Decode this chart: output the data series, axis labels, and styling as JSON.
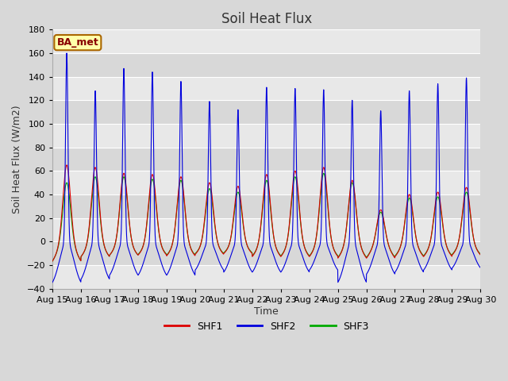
{
  "title": "Soil Heat Flux",
  "ylabel": "Soil Heat Flux (W/m2)",
  "xlabel": "Time",
  "ylim": [
    -40,
    180
  ],
  "yticks": [
    -40,
    -20,
    0,
    20,
    40,
    60,
    80,
    100,
    120,
    140,
    160,
    180
  ],
  "fig_bg_color": "#d8d8d8",
  "plot_bg_color": "#e8e8e8",
  "shf1_color": "#dd0000",
  "shf2_color": "#0000dd",
  "shf3_color": "#00aa00",
  "legend_label1": "SHF1",
  "legend_label2": "SHF2",
  "legend_label3": "SHF3",
  "site_label": "BA_met",
  "start_day": 15,
  "n_days": 15,
  "shf2_peaks": [
    160,
    128,
    147,
    144,
    136,
    119,
    112,
    131,
    130,
    129,
    120,
    111,
    128,
    134,
    139
  ],
  "shf1_peaks": [
    65,
    63,
    58,
    57,
    55,
    50,
    47,
    57,
    60,
    63,
    52,
    27,
    40,
    42,
    46
  ],
  "shf3_peaks": [
    50,
    55,
    55,
    53,
    52,
    45,
    42,
    52,
    55,
    58,
    50,
    25,
    37,
    38,
    42
  ],
  "shf2_troughs": [
    -40,
    -37,
    -33,
    -33,
    -33,
    -28,
    -30,
    -30,
    -30,
    -28,
    -40,
    -32,
    -30,
    -28,
    -26
  ],
  "shf1_troughs": [
    -26,
    -20,
    -18,
    -18,
    -19,
    -17,
    -16,
    -20,
    -20,
    -20,
    -22,
    -22,
    -20,
    -20,
    -18
  ],
  "shf3_troughs": [
    -26,
    -20,
    -18,
    -17,
    -18,
    -16,
    -15,
    -19,
    -19,
    -19,
    -21,
    -21,
    -19,
    -19,
    -17
  ],
  "points_per_day": 144,
  "title_fontsize": 12,
  "label_fontsize": 9,
  "tick_fontsize": 8,
  "band_colors": [
    "#e8e8e8",
    "#d8d8d8"
  ]
}
